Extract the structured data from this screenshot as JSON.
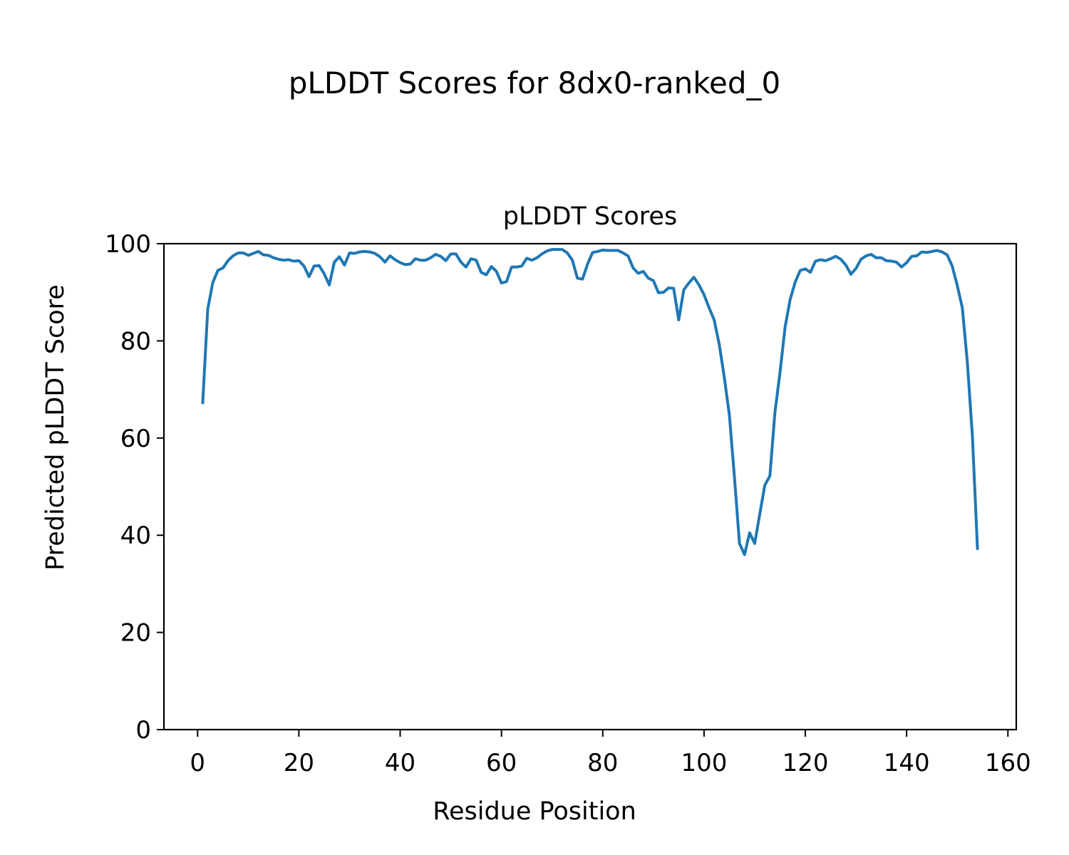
{
  "figure_title": "pLDDT Scores for 8dx0-ranked_0",
  "chart_data": {
    "type": "line",
    "title": "pLDDT Scores",
    "xlabel": "Residue Position",
    "ylabel": "Predicted pLDDT Score",
    "xlim": [
      -6.65,
      161.65
    ],
    "ylim": [
      0,
      100
    ],
    "xticks": [
      0,
      20,
      40,
      60,
      80,
      100,
      120,
      140,
      160
    ],
    "yticks": [
      0,
      20,
      40,
      60,
      80,
      100
    ],
    "grid": false,
    "line_color": "#1f77b4",
    "series": [
      {
        "x": [
          1,
          2,
          3,
          4,
          5,
          6,
          7,
          8,
          9,
          10,
          11,
          12,
          13,
          14,
          15,
          16,
          17,
          18,
          19,
          20,
          21,
          22,
          23,
          24,
          25,
          26,
          27,
          28,
          29,
          30,
          31,
          32,
          33,
          34,
          35,
          36,
          37,
          38,
          39,
          40,
          41,
          42,
          43,
          44,
          45,
          46,
          47,
          48,
          49,
          50,
          51,
          52,
          53,
          54,
          55,
          56,
          57,
          58,
          59,
          60,
          61,
          62,
          63,
          64,
          65,
          66,
          67,
          68,
          69,
          70,
          71,
          72,
          73,
          74,
          75,
          76,
          77,
          78,
          79,
          80,
          81,
          82,
          83,
          84,
          85,
          86,
          87,
          88,
          89,
          90,
          91,
          92,
          93,
          94,
          95,
          96,
          97,
          98,
          99,
          100,
          101,
          102,
          103,
          104,
          105,
          106,
          107,
          108,
          109,
          110,
          111,
          112,
          113,
          114,
          115,
          116,
          117,
          118,
          119,
          120,
          121,
          122,
          123,
          124,
          125,
          126,
          127,
          128,
          129,
          130,
          131,
          132,
          133,
          134,
          135,
          136,
          137,
          138,
          139,
          140,
          141,
          142,
          143,
          144,
          145,
          146,
          147,
          148,
          149,
          150,
          151,
          152,
          153,
          154
        ],
        "values": [
          67,
          86.5,
          92,
          94.5,
          95,
          96.5,
          97.5,
          98.1,
          98.1,
          97.6,
          98,
          98.4,
          97.7,
          97.6,
          97.1,
          96.8,
          96.6,
          96.7,
          96.4,
          96.5,
          95.4,
          93.2,
          95.4,
          95.5,
          93.8,
          91.5,
          96.2,
          97.3,
          95.6,
          98.1,
          98,
          98.3,
          98.4,
          98.3,
          98,
          97.3,
          96.2,
          97.5,
          96.7,
          96.1,
          95.7,
          95.8,
          96.9,
          96.6,
          96.6,
          97.1,
          97.8,
          97.4,
          96.5,
          97.9,
          97.9,
          96.2,
          95.2,
          96.9,
          96.6,
          94.1,
          93.6,
          95.3,
          94.3,
          91.9,
          92.2,
          95.2,
          95.2,
          95.4,
          97,
          96.6,
          97.1,
          97.9,
          98.5,
          98.8,
          98.8,
          98.8,
          98.1,
          96.6,
          92.9,
          92.7,
          95.8,
          98.2,
          98.4,
          98.7,
          98.6,
          98.6,
          98.6,
          98.1,
          97.5,
          95,
          93.9,
          94.3,
          92.9,
          92.4,
          89.9,
          90,
          90.9,
          90.8,
          84.3,
          90.5,
          91.9,
          93.1,
          91.5,
          89.5,
          86.8,
          84.3,
          79.3,
          72.5,
          64.8,
          52,
          38.3,
          36,
          40.5,
          38.3,
          44.3,
          50.3,
          52.2,
          65.3,
          73.5,
          82.8,
          88.5,
          92.1,
          94.5,
          94.8,
          94.1,
          96.4,
          96.7,
          96.5,
          96.9,
          97.4,
          96.8,
          95.6,
          93.7,
          94.9,
          96.8,
          97.5,
          97.8,
          97.1,
          97.1,
          96.5,
          96.4,
          96.2,
          95.2,
          96.1,
          97.4,
          97.5,
          98.3,
          98.2,
          98.4,
          98.6,
          98.3,
          97.7,
          95.4,
          91.4,
          86.8,
          75.5,
          60.2,
          37
        ]
      }
    ]
  }
}
